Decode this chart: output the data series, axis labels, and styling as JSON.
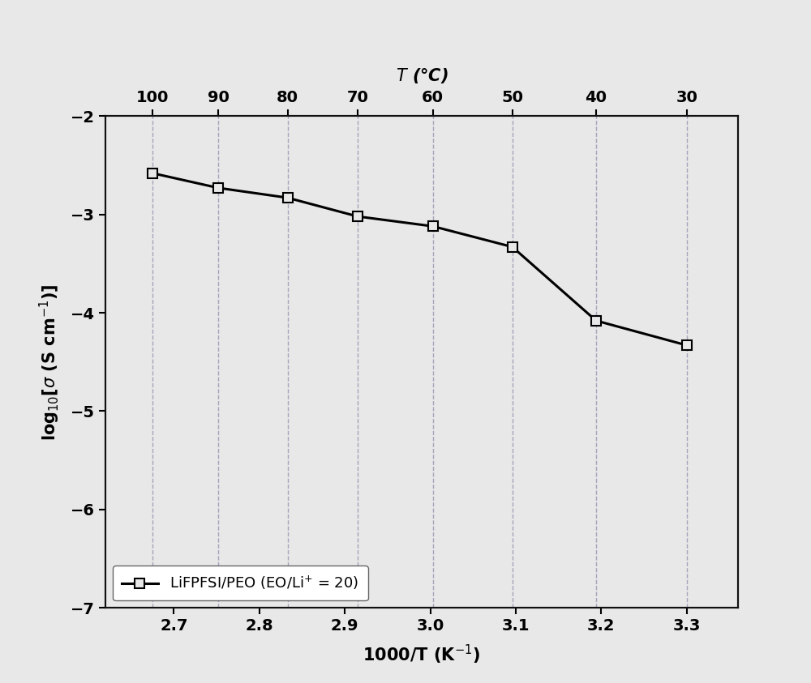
{
  "x_data": [
    2.675,
    2.752,
    2.833,
    2.915,
    3.003,
    3.096,
    3.194,
    3.3
  ],
  "y_data": [
    -2.58,
    -2.73,
    -2.83,
    -3.02,
    -3.12,
    -3.33,
    -4.08,
    -4.33
  ],
  "top_x_temps": [
    100,
    90,
    80,
    70,
    60,
    50,
    40,
    30
  ],
  "top_x_positions": [
    2.675,
    2.752,
    2.833,
    2.915,
    3.003,
    3.096,
    3.194,
    3.3
  ],
  "xlabel": "1000/T (K$^{-1}$)",
  "ylabel": "log$_{10}$[$\\sigma$ (S cm$^{-1}$)]",
  "top_xlabel": "$T$ (°C)",
  "legend_label": "LiFPFSI/PEO (EO/Li$^{+}$ = 20)",
  "xlim": [
    2.62,
    3.36
  ],
  "ylim": [
    -7,
    -2
  ],
  "yticks": [
    -7,
    -6,
    -5,
    -4,
    -3,
    -2
  ],
  "xticks": [
    2.7,
    2.8,
    2.9,
    3.0,
    3.1,
    3.2,
    3.3
  ],
  "line_color": "#000000",
  "marker": "s",
  "marker_facecolor": "#e8e8e8",
  "marker_edgecolor": "#000000",
  "marker_size": 8,
  "line_width": 2.2,
  "grid_color": "#8888aa",
  "background_color": "#e8e8e8",
  "figure_facecolor": "#e8e8e8"
}
